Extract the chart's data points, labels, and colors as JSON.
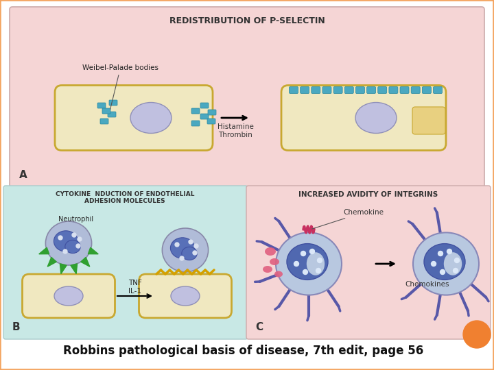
{
  "bg_color": "#ffffff",
  "border_color": "#f4a460",
  "panel_A_bg": "#f5d5d5",
  "panel_B_bg": "#c8e8e5",
  "panel_C_bg": "#f5d5d5",
  "cell_fill": "#f0e8c0",
  "cell_stroke": "#c8a830",
  "nucleus_fill": "#c0c0e0",
  "selectin_color": "#4aa8c0",
  "title_A": "REDISTRIBUTION OF P-SELECTIN",
  "title_B": "CYTOKINE  NDUCTION OF ENDOTHELIAL\nADHESION MOLECULES",
  "title_C": "INCREASED AVIDITY OF INTEGRINS",
  "label_A": "A",
  "label_B": "B",
  "label_C": "C",
  "weibel_label": "Weibel-Palade bodies",
  "histamine_label": "Histamine\nThrombin",
  "neutrophil_label": "Neutrophil",
  "tnf_label": "TNF\nIL-1",
  "chemokine_label": "Chemokine",
  "chemokines_label": "Chemokines",
  "caption": "Robbins pathological basis of disease, 7th edit, page 56",
  "caption_fontsize": 12,
  "orange_circle_color": "#f08030"
}
